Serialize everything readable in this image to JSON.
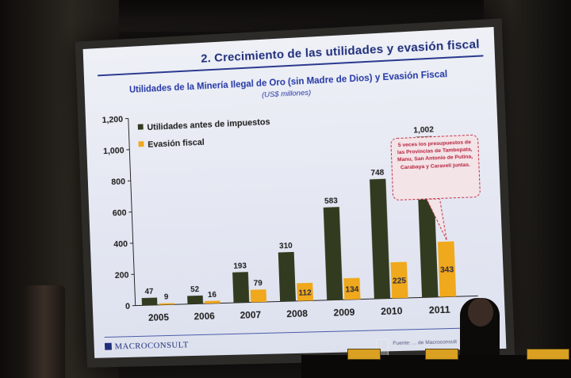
{
  "slide": {
    "title": "2. Crecimiento de las utilidades y evasión fiscal",
    "logo_text": "MACROCONSULT",
    "source_text": "Fuente: ... de Macroconsult",
    "callout_text": "5 veces los presupuestos de las Provincias de Tambopata, Manu, San Antonio de Putina, Carabaya y Caravelí juntas."
  },
  "chart_data": {
    "type": "bar",
    "title": "Utilidades de la Minería Ilegal de Oro (sin Madre de Dios) y Evasión Fiscal",
    "subtitle": "(US$ millones)",
    "categories": [
      "2005",
      "2006",
      "2007",
      "2008",
      "2009",
      "2010",
      "2011"
    ],
    "series": [
      {
        "name": "Utilidades antes de impuestos",
        "color": "#323b1f",
        "values": [
          47,
          52,
          193,
          310,
          583,
          748,
          1002
        ],
        "labels": [
          "47",
          "52",
          "193",
          "310",
          "583",
          "748",
          "1,002"
        ]
      },
      {
        "name": "Evasión fiscal",
        "color": "#f0a81c",
        "values": [
          9,
          16,
          79,
          112,
          134,
          225,
          343
        ],
        "labels": [
          "9",
          "16",
          "79",
          "112",
          "134",
          "225",
          "343"
        ]
      }
    ],
    "ylim": [
      0,
      1200
    ],
    "yticks": [
      0,
      200,
      400,
      600,
      800,
      1000,
      1200
    ],
    "ytick_labels": [
      "0",
      "200",
      "400",
      "600",
      "800",
      "1,000",
      "1,200"
    ],
    "xlabel": "",
    "ylabel": "",
    "legend_position": "top-left",
    "grid": false
  }
}
